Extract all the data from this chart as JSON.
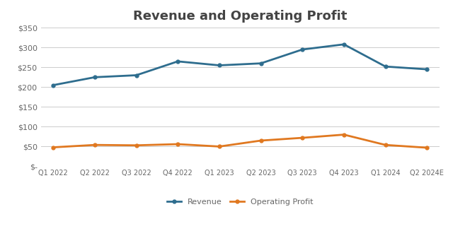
{
  "title": "Revenue and Operating Profit",
  "categories": [
    "Q1 2022",
    "Q2 2022",
    "Q3 2022",
    "Q4 2022",
    "Q1 2023",
    "Q2 2023",
    "Q3 2023",
    "Q4 2023",
    "Q1 2024",
    "Q2 2024E"
  ],
  "revenue": [
    205,
    225,
    230,
    265,
    255,
    260,
    295,
    308,
    252,
    245
  ],
  "operating_profit": [
    48,
    54,
    53,
    56,
    50,
    65,
    72,
    80,
    54,
    47
  ],
  "revenue_color": "#2E6D8E",
  "op_color": "#E07820",
  "ylim_min": 0,
  "ylim_max": 350,
  "ytick_step": 50,
  "background_color": "#FFFFFF",
  "grid_color": "#CCCCCC",
  "title_fontsize": 13,
  "legend_labels": [
    "Revenue",
    "Operating Profit"
  ],
  "line_width": 2.0,
  "tick_label_color": "#666666",
  "title_color": "#444444"
}
